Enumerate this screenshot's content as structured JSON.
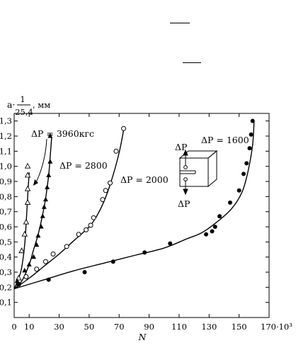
{
  "header_marks": [
    {
      "name": "header-mark-1"
    },
    {
      "name": "header-mark-2"
    }
  ],
  "chart_data": {
    "type": "scatter",
    "ylabel_prefix": "a·",
    "ylabel_frac_num": "1",
    "ylabel_frac_den": "25,4",
    "ylabel_unit": ", мм",
    "xlabel": "N",
    "xlim": [
      0,
      170
    ],
    "ylim": [
      0,
      1.35
    ],
    "x_ticks": [
      0,
      10,
      30,
      50,
      70,
      90,
      110,
      130,
      150
    ],
    "x_tick_labels": [
      "0",
      "10",
      "30",
      "50",
      "70",
      "90",
      "110",
      "130",
      "150"
    ],
    "x_last_tick_label": "170·10³",
    "y_ticks": [
      0.1,
      0.2,
      0.3,
      0.4,
      0.5,
      0.6,
      0.7,
      0.8,
      0.9,
      1.0,
      1.1,
      1.2,
      1.3
    ],
    "y_tick_labels": [
      "0,1",
      "0,2",
      "0,3",
      "0,4",
      "0,5",
      "0,6",
      "0,7",
      "0,8",
      "0,9",
      "1,0",
      "1,1",
      "1,2",
      "1,3"
    ],
    "series": [
      {
        "name": "ΔP = 3960 кгс",
        "label_text": "ΔP = 3960кгс",
        "marker": "open-triangle",
        "curve": [
          [
            0,
            0.19
          ],
          [
            3,
            0.26
          ],
          [
            5,
            0.33
          ],
          [
            7,
            0.48
          ],
          [
            8,
            0.62
          ],
          [
            9,
            0.8
          ],
          [
            10,
            0.96
          ]
        ],
        "points": [
          [
            3,
            0.26
          ],
          [
            5,
            0.44
          ],
          [
            7,
            0.55
          ],
          [
            8,
            0.63
          ],
          [
            9,
            0.76
          ],
          [
            9,
            0.85
          ],
          [
            9,
            0.94
          ],
          [
            9,
            1.0
          ]
        ]
      },
      {
        "name": "ΔP = 2800",
        "label_text": "ΔP = 2800",
        "marker": "filled-triangle",
        "curve": [
          [
            0,
            0.19
          ],
          [
            5,
            0.24
          ],
          [
            10,
            0.35
          ],
          [
            13,
            0.45
          ],
          [
            16,
            0.55
          ],
          [
            19,
            0.68
          ],
          [
            21,
            0.79
          ],
          [
            23,
            0.94
          ],
          [
            24,
            1.06
          ],
          [
            25,
            1.19
          ]
        ],
        "points": [
          [
            2,
            0.24
          ],
          [
            7,
            0.31
          ],
          [
            10,
            0.35
          ],
          [
            13,
            0.4
          ],
          [
            15,
            0.48
          ],
          [
            16,
            0.54
          ],
          [
            18,
            0.6
          ],
          [
            19,
            0.67
          ],
          [
            20,
            0.73
          ],
          [
            21,
            0.78
          ],
          [
            22,
            0.86
          ],
          [
            23,
            0.94
          ],
          [
            24,
            1.03
          ],
          [
            24,
            1.2
          ]
        ]
      },
      {
        "name": "ΔP = 2000",
        "label_text": "ΔP = 2000",
        "marker": "open-circle",
        "curve": [
          [
            0,
            0.19
          ],
          [
            10,
            0.26
          ],
          [
            20,
            0.34
          ],
          [
            30,
            0.42
          ],
          [
            40,
            0.51
          ],
          [
            50,
            0.6
          ],
          [
            55,
            0.67
          ],
          [
            60,
            0.77
          ],
          [
            65,
            0.91
          ],
          [
            70,
            1.09
          ],
          [
            73,
            1.24
          ]
        ],
        "points": [
          [
            3,
            0.22
          ],
          [
            8,
            0.27
          ],
          [
            15,
            0.32
          ],
          [
            21,
            0.37
          ],
          [
            26,
            0.42
          ],
          [
            35,
            0.47
          ],
          [
            43,
            0.55
          ],
          [
            48,
            0.58
          ],
          [
            51,
            0.61
          ],
          [
            53,
            0.66
          ],
          [
            59,
            0.78
          ],
          [
            61,
            0.84
          ],
          [
            64,
            0.89
          ],
          [
            68,
            1.1
          ],
          [
            73,
            1.25
          ]
        ]
      },
      {
        "name": "ΔP = 1600",
        "label_text": "ΔP = 1600",
        "marker": "filled-circle",
        "curve": [
          [
            0,
            0.19
          ],
          [
            20,
            0.25
          ],
          [
            40,
            0.31
          ],
          [
            60,
            0.36
          ],
          [
            80,
            0.41
          ],
          [
            100,
            0.46
          ],
          [
            115,
            0.52
          ],
          [
            125,
            0.56
          ],
          [
            135,
            0.63
          ],
          [
            145,
            0.72
          ],
          [
            152,
            0.83
          ],
          [
            156,
            0.97
          ],
          [
            159,
            1.14
          ],
          [
            160,
            1.3
          ]
        ],
        "points": [
          [
            3,
            0.22
          ],
          [
            23,
            0.25
          ],
          [
            47,
            0.3
          ],
          [
            66,
            0.37
          ],
          [
            87,
            0.43
          ],
          [
            104,
            0.49
          ],
          [
            128,
            0.55
          ],
          [
            132,
            0.57
          ],
          [
            134,
            0.6
          ],
          [
            137,
            0.67
          ],
          [
            144,
            0.76
          ],
          [
            150,
            0.84
          ],
          [
            153,
            0.95
          ],
          [
            155,
            1.02
          ],
          [
            157,
            1.12
          ],
          [
            158,
            1.21
          ],
          [
            159,
            1.3
          ]
        ]
      }
    ],
    "annotations": {
      "arrow_3960": "curved arrow from label to curve",
      "inset": "compact tension specimen",
      "inset_load_top": "ΔP",
      "inset_load_bottom": "ΔP"
    }
  }
}
